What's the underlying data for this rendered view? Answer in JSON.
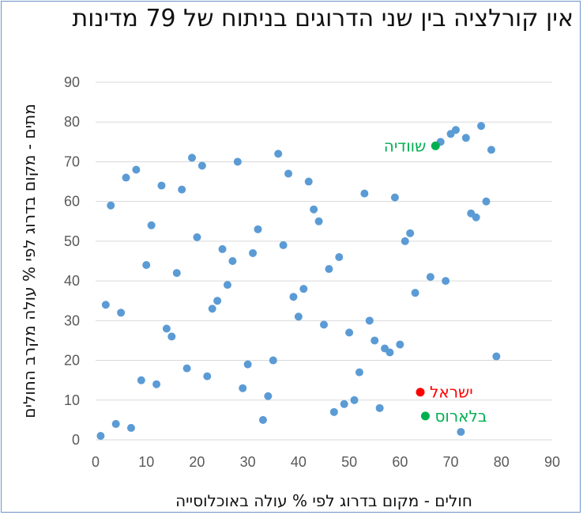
{
  "chart_data": {
    "type": "scatter",
    "title": "אין קורלציה בין שני הדרוגים בניתוח של 79 מדינות",
    "xlabel": "חולים - מקום בדרוג לפי % עולה באוכלוסייה",
    "ylabel": "מתים - מקום בדרוג לפי % עולה מקרב החולים",
    "xlim": [
      0,
      90
    ],
    "ylim": [
      0,
      90
    ],
    "xticks": [
      0,
      10,
      20,
      30,
      40,
      50,
      60,
      70,
      80,
      90
    ],
    "yticks": [
      0,
      10,
      20,
      30,
      40,
      50,
      60,
      70,
      80,
      90
    ],
    "grid": "horizontal",
    "point_color": "#5b9bd5",
    "gridline_color": "#d9d9d9",
    "points": [
      {
        "x": 1,
        "y": 1
      },
      {
        "x": 2,
        "y": 34
      },
      {
        "x": 3,
        "y": 59
      },
      {
        "x": 4,
        "y": 4
      },
      {
        "x": 5,
        "y": 32
      },
      {
        "x": 6,
        "y": 66
      },
      {
        "x": 7,
        "y": 3
      },
      {
        "x": 8,
        "y": 68
      },
      {
        "x": 9,
        "y": 15
      },
      {
        "x": 10,
        "y": 44
      },
      {
        "x": 11,
        "y": 54
      },
      {
        "x": 12,
        "y": 14
      },
      {
        "x": 13,
        "y": 64
      },
      {
        "x": 14,
        "y": 28
      },
      {
        "x": 15,
        "y": 26
      },
      {
        "x": 16,
        "y": 42
      },
      {
        "x": 17,
        "y": 63
      },
      {
        "x": 18,
        "y": 18
      },
      {
        "x": 19,
        "y": 71
      },
      {
        "x": 20,
        "y": 51
      },
      {
        "x": 21,
        "y": 69
      },
      {
        "x": 22,
        "y": 16
      },
      {
        "x": 23,
        "y": 33
      },
      {
        "x": 24,
        "y": 35
      },
      {
        "x": 25,
        "y": 48
      },
      {
        "x": 26,
        "y": 39
      },
      {
        "x": 27,
        "y": 45
      },
      {
        "x": 28,
        "y": 70
      },
      {
        "x": 29,
        "y": 13
      },
      {
        "x": 30,
        "y": 19
      },
      {
        "x": 31,
        "y": 47
      },
      {
        "x": 32,
        "y": 53
      },
      {
        "x": 33,
        "y": 5
      },
      {
        "x": 34,
        "y": 11
      },
      {
        "x": 35,
        "y": 20
      },
      {
        "x": 36,
        "y": 72
      },
      {
        "x": 37,
        "y": 49
      },
      {
        "x": 38,
        "y": 67
      },
      {
        "x": 39,
        "y": 36
      },
      {
        "x": 40,
        "y": 31
      },
      {
        "x": 41,
        "y": 38
      },
      {
        "x": 42,
        "y": 65
      },
      {
        "x": 43,
        "y": 58
      },
      {
        "x": 44,
        "y": 55
      },
      {
        "x": 45,
        "y": 29
      },
      {
        "x": 46,
        "y": 43
      },
      {
        "x": 47,
        "y": 7
      },
      {
        "x": 48,
        "y": 46
      },
      {
        "x": 49,
        "y": 9
      },
      {
        "x": 50,
        "y": 27
      },
      {
        "x": 51,
        "y": 10
      },
      {
        "x": 52,
        "y": 17
      },
      {
        "x": 53,
        "y": 62
      },
      {
        "x": 54,
        "y": 30
      },
      {
        "x": 55,
        "y": 25
      },
      {
        "x": 56,
        "y": 8
      },
      {
        "x": 57,
        "y": 23
      },
      {
        "x": 58,
        "y": 22
      },
      {
        "x": 59,
        "y": 61
      },
      {
        "x": 60,
        "y": 24
      },
      {
        "x": 61,
        "y": 50
      },
      {
        "x": 62,
        "y": 52
      },
      {
        "x": 63,
        "y": 37
      },
      {
        "x": 66,
        "y": 41
      },
      {
        "x": 68,
        "y": 75
      },
      {
        "x": 69,
        "y": 40
      },
      {
        "x": 70,
        "y": 77
      },
      {
        "x": 71,
        "y": 78
      },
      {
        "x": 72,
        "y": 2
      },
      {
        "x": 73,
        "y": 76
      },
      {
        "x": 74,
        "y": 57
      },
      {
        "x": 75,
        "y": 56
      },
      {
        "x": 76,
        "y": 79
      },
      {
        "x": 77,
        "y": 60
      },
      {
        "x": 78,
        "y": 73
      },
      {
        "x": 79,
        "y": 21
      }
    ],
    "highlighted": [
      {
        "label": "שוודיה",
        "x": 67,
        "y": 74,
        "color": "#00b050"
      },
      {
        "label": "ישראל",
        "x": 64,
        "y": 12,
        "color": "#ff0000"
      },
      {
        "label": "בלארוס",
        "x": 65,
        "y": 6,
        "color": "#00b050"
      }
    ]
  }
}
